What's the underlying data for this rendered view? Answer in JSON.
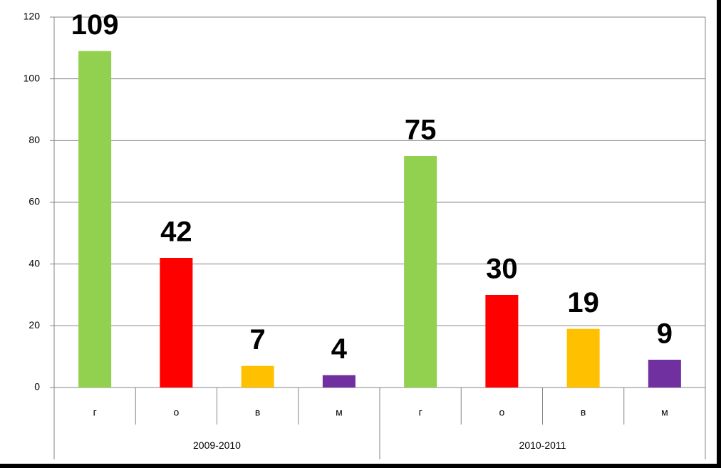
{
  "chart_data": {
    "type": "bar",
    "categories": [
      "г",
      "о",
      "в",
      "м",
      "г",
      "о",
      "в",
      "м"
    ],
    "groups": [
      "2009-2010",
      "2010-2011"
    ],
    "values": [
      109,
      42,
      7,
      4,
      75,
      30,
      19,
      9
    ],
    "colors": [
      "#92d050",
      "#ff0000",
      "#ffc000",
      "#7030a0",
      "#92d050",
      "#ff0000",
      "#ffc000",
      "#7030a0"
    ],
    "ylim": [
      0,
      120
    ],
    "yticks": [
      0,
      20,
      40,
      60,
      80,
      100,
      120
    ],
    "grid": true
  }
}
